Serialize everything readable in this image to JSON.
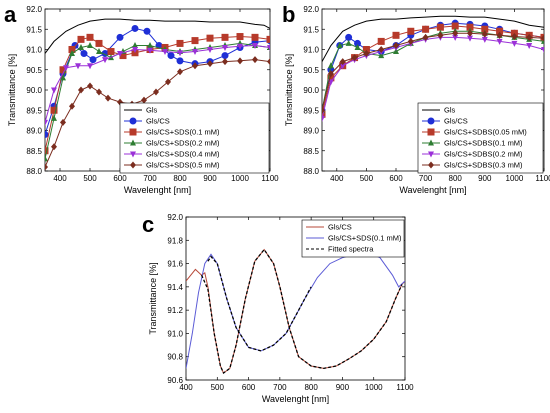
{
  "chart_data": [
    {
      "panel": "a",
      "type": "line",
      "xlabel": "Wavelenght [nm]",
      "ylabel": "Transmittance [%]",
      "xlim": [
        350,
        1100
      ],
      "ylim": [
        88.0,
        92.0
      ],
      "xticks": [
        400,
        500,
        600,
        700,
        800,
        900,
        1000,
        1100
      ],
      "yticks": [
        88.0,
        88.5,
        89.0,
        89.5,
        90.0,
        90.5,
        91.0,
        91.5,
        92.0
      ],
      "legend_position": "bottom-right",
      "series": [
        {
          "name": "Gls",
          "color": "#000000",
          "marker": "none",
          "x": [
            350,
            380,
            420,
            460,
            500,
            550,
            600,
            650,
            700,
            750,
            800,
            850,
            900,
            950,
            1000,
            1050,
            1080,
            1100
          ],
          "y": [
            90.9,
            91.2,
            91.45,
            91.6,
            91.7,
            91.75,
            91.75,
            91.72,
            91.72,
            91.7,
            91.7,
            91.7,
            91.68,
            91.68,
            91.68,
            91.62,
            91.6,
            91.52
          ]
        },
        {
          "name": "Gls/CS",
          "color": "#1f2fd6",
          "marker": "circle",
          "x": [
            350,
            380,
            410,
            450,
            480,
            510,
            550,
            600,
            650,
            690,
            730,
            770,
            800,
            850,
            900,
            950,
            1000,
            1050,
            1100
          ],
          "y": [
            88.9,
            89.6,
            90.4,
            91.1,
            90.9,
            90.75,
            90.9,
            91.3,
            91.52,
            91.45,
            91.1,
            90.85,
            90.72,
            90.65,
            90.7,
            90.85,
            91.05,
            91.18,
            91.22
          ]
        },
        {
          "name": "Gls/CS+SDS(0.1 mM)",
          "color": "#b73a2a",
          "marker": "square",
          "x": [
            350,
            380,
            410,
            440,
            470,
            500,
            530,
            570,
            610,
            650,
            700,
            750,
            800,
            850,
            900,
            950,
            1000,
            1050,
            1100
          ],
          "y": [
            88.5,
            89.5,
            90.5,
            91.0,
            91.25,
            91.3,
            91.15,
            90.95,
            90.85,
            90.92,
            91.0,
            91.05,
            91.15,
            91.22,
            91.28,
            91.3,
            91.32,
            91.3,
            91.25
          ]
        },
        {
          "name": "Gls/CS+SDS(0.2 mM)",
          "color": "#2e7d32",
          "marker": "triangle-up",
          "x": [
            350,
            380,
            410,
            440,
            470,
            500,
            530,
            570,
            610,
            650,
            700,
            750,
            800,
            850,
            900,
            950,
            1000,
            1050,
            1100
          ],
          "y": [
            88.3,
            89.3,
            90.3,
            90.9,
            91.05,
            91.1,
            90.95,
            90.8,
            90.95,
            91.1,
            91.1,
            91.0,
            90.95,
            91.0,
            91.05,
            91.1,
            91.15,
            91.1,
            91.05
          ]
        },
        {
          "name": "Gls/CS+SDS(0.4 mM)",
          "color": "#9b30d8",
          "marker": "triangle-down",
          "x": [
            350,
            380,
            420,
            460,
            500,
            550,
            600,
            650,
            700,
            750,
            800,
            850,
            900,
            950,
            1000,
            1050,
            1100
          ],
          "y": [
            89.2,
            90.0,
            90.55,
            90.6,
            90.6,
            90.75,
            90.9,
            91.0,
            90.98,
            90.95,
            90.92,
            90.95,
            91.0,
            91.05,
            91.08,
            91.1,
            91.05
          ]
        },
        {
          "name": "Gls/CS+SDS(0.5 mM)",
          "color": "#7b2d1f",
          "marker": "diamond",
          "x": [
            350,
            380,
            410,
            440,
            470,
            500,
            530,
            560,
            600,
            640,
            680,
            720,
            760,
            800,
            850,
            900,
            950,
            1000,
            1050,
            1100
          ],
          "y": [
            88.1,
            88.6,
            89.2,
            89.6,
            90.0,
            90.1,
            89.95,
            89.8,
            89.7,
            89.65,
            89.75,
            89.95,
            90.2,
            90.45,
            90.6,
            90.65,
            90.7,
            90.72,
            90.75,
            90.7
          ]
        }
      ]
    },
    {
      "panel": "b",
      "type": "line",
      "xlabel": "Wavelenght [nm]",
      "ylabel": "Transmittance [%]",
      "xlim": [
        350,
        1100
      ],
      "ylim": [
        88.0,
        92.0
      ],
      "xticks": [
        400,
        500,
        600,
        700,
        800,
        900,
        1000,
        1100
      ],
      "yticks": [
        88.0,
        88.5,
        89.0,
        89.5,
        90.0,
        90.5,
        91.0,
        91.5,
        92.0
      ],
      "legend_position": "bottom-right",
      "series": [
        {
          "name": "Gls",
          "color": "#000000",
          "marker": "none",
          "x": [
            350,
            380,
            420,
            460,
            500,
            550,
            600,
            650,
            700,
            750,
            800,
            850,
            900,
            950,
            1000,
            1050,
            1100
          ],
          "y": [
            90.7,
            91.1,
            91.45,
            91.6,
            91.7,
            91.75,
            91.75,
            91.78,
            91.8,
            91.82,
            91.82,
            91.8,
            91.8,
            91.75,
            91.7,
            91.6,
            91.55
          ]
        },
        {
          "name": "Gls/CS",
          "color": "#1f2fd6",
          "marker": "circle",
          "x": [
            350,
            380,
            410,
            440,
            470,
            500,
            550,
            600,
            650,
            700,
            750,
            800,
            850,
            900,
            950,
            1000,
            1050,
            1100
          ],
          "y": [
            89.5,
            90.5,
            91.1,
            91.3,
            91.15,
            91.0,
            90.95,
            91.1,
            91.35,
            91.5,
            91.6,
            91.65,
            91.62,
            91.58,
            91.5,
            91.4,
            91.35,
            91.3
          ]
        },
        {
          "name": "Gls/CS+SDBS(0.05 mM)",
          "color": "#b73a2a",
          "marker": "square",
          "x": [
            350,
            380,
            420,
            460,
            500,
            550,
            600,
            650,
            700,
            750,
            800,
            850,
            900,
            950,
            1000,
            1050,
            1100
          ],
          "y": [
            89.4,
            90.3,
            90.6,
            90.8,
            91.0,
            91.2,
            91.35,
            91.45,
            91.5,
            91.55,
            91.58,
            91.55,
            91.5,
            91.45,
            91.4,
            91.35,
            91.3
          ]
        },
        {
          "name": "Gls/CS+SDBS(0.1 mM)",
          "color": "#2e7d32",
          "marker": "triangle-up",
          "x": [
            350,
            380,
            410,
            440,
            470,
            500,
            550,
            600,
            650,
            700,
            750,
            800,
            850,
            900,
            950,
            1000,
            1050,
            1100
          ],
          "y": [
            89.5,
            90.6,
            91.1,
            91.15,
            91.05,
            90.9,
            90.85,
            90.95,
            91.15,
            91.3,
            91.4,
            91.45,
            91.45,
            91.4,
            91.35,
            91.3,
            91.25,
            91.2
          ]
        },
        {
          "name": "Gls/CS+SDBS(0.2 mM)",
          "color": "#9b30d8",
          "marker": "triangle-down",
          "x": [
            350,
            380,
            420,
            460,
            500,
            550,
            600,
            650,
            700,
            750,
            800,
            850,
            900,
            950,
            1000,
            1050,
            1100
          ],
          "y": [
            89.3,
            90.2,
            90.6,
            90.75,
            90.85,
            90.95,
            91.05,
            91.15,
            91.25,
            91.3,
            91.3,
            91.28,
            91.25,
            91.2,
            91.15,
            91.1,
            91.0
          ]
        },
        {
          "name": "Gls/CS+SDBS(0.3 mM)",
          "color": "#7b2d1f",
          "marker": "diamond",
          "x": [
            350,
            380,
            420,
            460,
            500,
            550,
            600,
            650,
            700,
            750,
            800,
            850,
            900,
            950,
            1000,
            1050,
            1100
          ],
          "y": [
            89.5,
            90.4,
            90.7,
            90.8,
            90.9,
            91.0,
            91.1,
            91.2,
            91.3,
            91.35,
            91.4,
            91.4,
            91.38,
            91.35,
            91.32,
            91.3,
            91.28
          ]
        }
      ]
    },
    {
      "panel": "c",
      "type": "line",
      "xlabel": "Wavelenght [nm]",
      "ylabel": "Transmittance [%]",
      "xlim": [
        400,
        1100
      ],
      "ylim": [
        90.6,
        92.0
      ],
      "xticks": [
        400,
        500,
        600,
        700,
        800,
        900,
        1000,
        1100
      ],
      "yticks": [
        90.6,
        90.8,
        91.0,
        91.2,
        91.4,
        91.6,
        91.8,
        92.0
      ],
      "legend_position": "top-right",
      "series": [
        {
          "name": "Gls/CS",
          "color": "#b74a3a",
          "style": "solid",
          "x": [
            400,
            430,
            450,
            460,
            470,
            490,
            510,
            520,
            540,
            560,
            590,
            620,
            650,
            680,
            700,
            730,
            760,
            800,
            840,
            880,
            920,
            960,
            1000,
            1040,
            1070,
            1090,
            1100
          ],
          "y": [
            91.45,
            91.55,
            91.5,
            91.52,
            91.4,
            91.0,
            90.72,
            90.66,
            90.7,
            90.9,
            91.3,
            91.62,
            91.72,
            91.6,
            91.4,
            91.05,
            90.8,
            90.72,
            90.7,
            90.72,
            90.78,
            90.85,
            90.95,
            91.1,
            91.3,
            91.42,
            91.45
          ]
        },
        {
          "name": "Gls/CS+SDS(0.1 mM)",
          "color": "#5b5bd6",
          "style": "solid",
          "x": [
            400,
            420,
            440,
            460,
            480,
            500,
            530,
            560,
            600,
            640,
            680,
            720,
            750,
            780,
            820,
            860,
            900,
            940,
            980,
            1020,
            1060,
            1080,
            1100
          ],
          "y": [
            90.7,
            91.0,
            91.35,
            91.6,
            91.68,
            91.6,
            91.3,
            91.05,
            90.88,
            90.85,
            90.9,
            91.0,
            91.15,
            91.3,
            91.48,
            91.6,
            91.65,
            91.68,
            91.7,
            91.65,
            91.5,
            91.4,
            91.45
          ]
        },
        {
          "name": "Fitted spectra",
          "color": "#000000",
          "style": "dashed",
          "x": [
            450,
            470,
            490,
            510,
            520,
            540,
            560,
            590,
            620,
            650,
            680,
            700,
            730,
            760,
            800,
            840,
            880,
            920,
            960,
            1000,
            1040,
            1070,
            1090
          ],
          "y": [
            91.5,
            91.38,
            91.0,
            90.72,
            90.66,
            90.7,
            90.9,
            91.3,
            91.62,
            91.72,
            91.6,
            91.4,
            91.05,
            90.8,
            90.72,
            90.7,
            90.72,
            90.78,
            90.85,
            90.95,
            91.1,
            91.3,
            91.42
          ]
        },
        {
          "name": "Fitted spectra",
          "color": "#000000",
          "style": "dashed",
          "x": [
            470,
            480,
            500,
            530,
            560,
            600,
            640,
            680,
            720,
            750,
            780,
            800
          ],
          "y": [
            91.62,
            91.66,
            91.6,
            91.3,
            91.05,
            90.88,
            90.85,
            90.9,
            91.0,
            91.15,
            91.3,
            91.4
          ]
        }
      ],
      "legend": [
        "Gls/CS",
        "Gls/CS+SDS(0.1 mM)",
        "Fitted spectra"
      ]
    }
  ]
}
